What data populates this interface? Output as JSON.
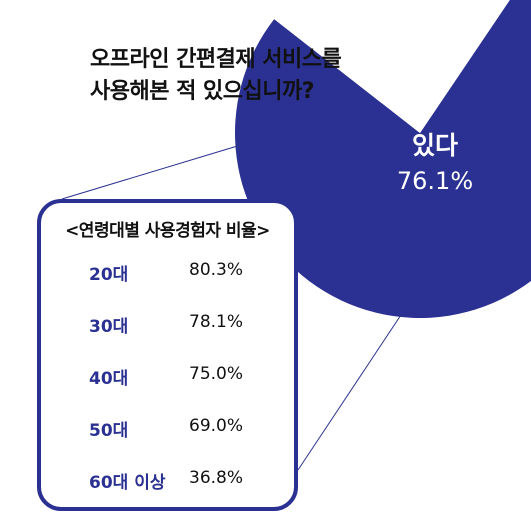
{
  "chart_data": [
    {
      "type": "pie",
      "title": "오프라인 간편결제 서비스를\n사용해본 적 있으십니까?",
      "title_lines": [
        "오프라인 간편결제 서비스를",
        "사용해본 적 있으십니까?"
      ],
      "categories": [
        "있다",
        ""
      ],
      "values": [
        76.1,
        23.9
      ],
      "value_labels": [
        "76.1%"
      ],
      "colors": [
        "#2b3192",
        "#ffffff"
      ]
    },
    {
      "type": "table",
      "title": "<연령대별 사용경험자 비율>",
      "categories": [
        "20대",
        "30대",
        "40대",
        "50대",
        "60대 이상"
      ],
      "value_labels": [
        "80.3%",
        "78.1%",
        "75.0%",
        "69.0%",
        "36.8%"
      ],
      "values": [
        80.3,
        78.1,
        75.0,
        69.0,
        36.8
      ]
    }
  ],
  "colors": {
    "accent": "#2b3192",
    "text": "#111111"
  }
}
